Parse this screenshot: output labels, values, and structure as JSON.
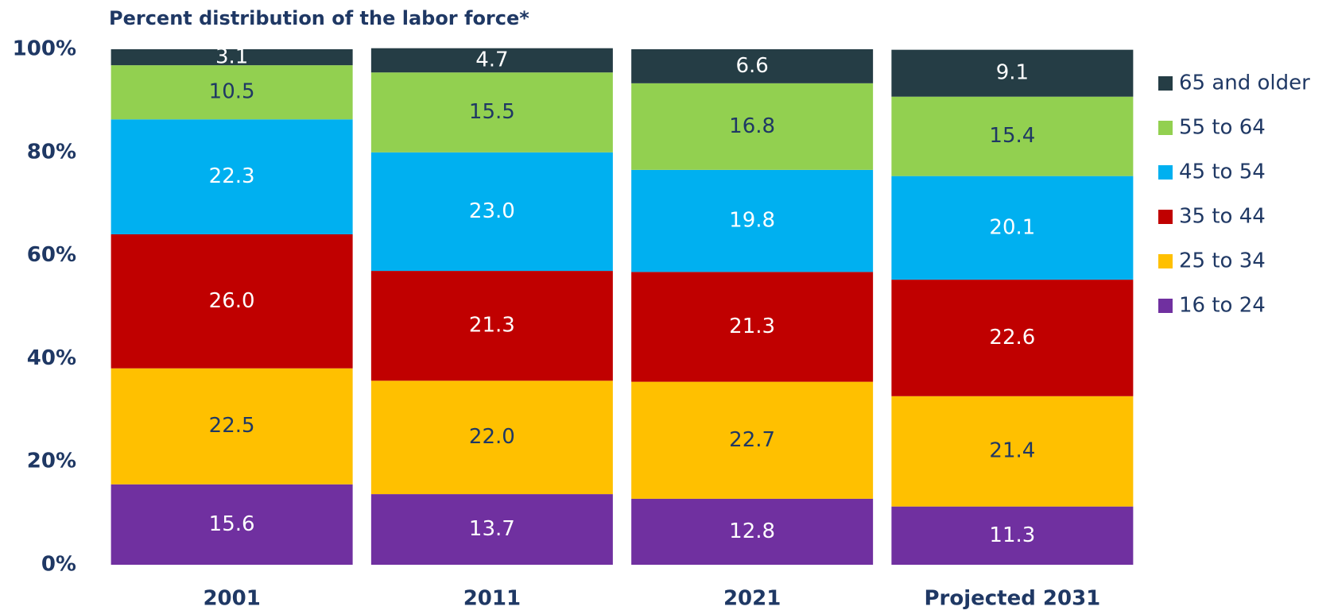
{
  "chart_data": {
    "type": "stacked_bar",
    "title": "Percent distribution of the labor force*",
    "categories": [
      "2001",
      "2011",
      "2021",
      "Projected 2031"
    ],
    "series": [
      {
        "name": "16 to 24",
        "color": "#7030a0",
        "label_color": "#ffffff",
        "values": [
          15.6,
          13.7,
          12.8,
          11.3
        ],
        "value_labels": [
          "15.6",
          "13.7",
          "12.8",
          "11.3"
        ]
      },
      {
        "name": "25 to 34",
        "color": "#ffc000",
        "label_color": "#1f3864",
        "values": [
          22.5,
          22,
          22.7,
          21.4
        ],
        "value_labels": [
          "22.5",
          "22.0",
          "22.7",
          "21.4"
        ]
      },
      {
        "name": "35 to 44",
        "color": "#c00000",
        "label_color": "#ffffff",
        "values": [
          26,
          21.3,
          21.3,
          22.6
        ],
        "value_labels": [
          "26.0",
          "21.3",
          "21.3",
          "22.6"
        ]
      },
      {
        "name": "45 to 54",
        "color": "#00b0f0",
        "label_color": "#ffffff",
        "values": [
          22.3,
          23,
          19.8,
          20.1
        ],
        "value_labels": [
          "22.3",
          "23.0",
          "19.8",
          "20.1"
        ]
      },
      {
        "name": "55 to 64",
        "color": "#92d050",
        "label_color": "#1f3864",
        "values": [
          10.5,
          15.5,
          16.8,
          15.4
        ],
        "value_labels": [
          "10.5",
          "15.5",
          "16.8",
          "15.4"
        ]
      },
      {
        "name": "65 and older",
        "color": "#253d45",
        "label_color": "#ffffff",
        "values": [
          3.1,
          4.7,
          6.6,
          9.1
        ],
        "value_labels": [
          "3.1",
          "4.7",
          "6.6",
          "9.1"
        ]
      }
    ],
    "ylim": [
      0,
      100
    ],
    "yticks": [
      {
        "value": 0,
        "label": "0%"
      },
      {
        "value": 20,
        "label": "20%"
      },
      {
        "value": 40,
        "label": "40%"
      },
      {
        "value": 60,
        "label": "60%"
      },
      {
        "value": 80,
        "label": "80%"
      },
      {
        "value": 100,
        "label": "100%"
      }
    ],
    "legend": "right"
  }
}
